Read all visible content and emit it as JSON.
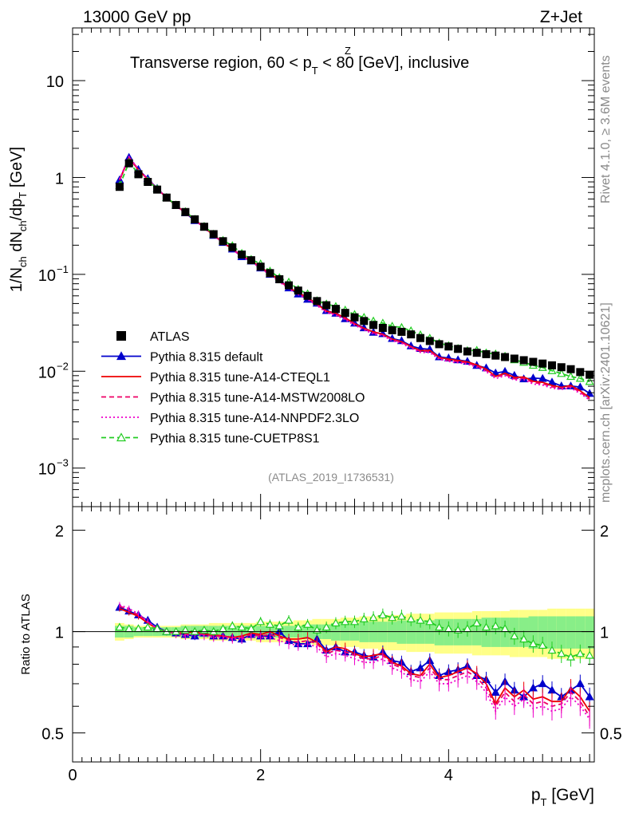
{
  "header": {
    "energy": "13000 GeV pp",
    "process": "Z+Jet"
  },
  "title": {
    "main_pre": "Transverse region, 60 < p",
    "main_sup": "Z",
    "main_sub": "T",
    "main_post": " < 80 [GeV], inclusive"
  },
  "side": {
    "rivet": "Rivet 4.1.0, ≥ 3.6M events",
    "mcplots": "mcplots.cern.ch [arXiv:2401.10621]"
  },
  "analysis_tag": "(ATLAS_2019_I1736531)",
  "axes": {
    "ylabel_main": "1/N_ch dN_ch/dp_T [GeV]",
    "ylabel_ratio": "Ratio to ATLAS",
    "xlabel": "p_T [GeV]",
    "x_ticks": [
      "0",
      "2",
      "4"
    ],
    "y_main_ticks": [
      "10",
      "1",
      "10^-1",
      "10^-2",
      "10^-3"
    ],
    "y_ratio_ticks": [
      "2",
      "1",
      "0.5"
    ]
  },
  "legend": [
    {
      "label": "ATLAS",
      "color": "#000000",
      "style": "square"
    },
    {
      "label": "Pythia 8.315 default",
      "color": "#0000cc",
      "style": "line-triangle"
    },
    {
      "label": "Pythia 8.315 tune-A14-CTEQL1",
      "color": "#ee0000",
      "style": "solid"
    },
    {
      "label": "Pythia 8.315 tune-A14-MSTW2008LO",
      "color": "#ee0066",
      "style": "dashed"
    },
    {
      "label": "Pythia 8.315 tune-A14-NNPDF2.3LO",
      "color": "#ee00cc",
      "style": "dotted"
    },
    {
      "label": "Pythia 8.315 tune-CUETP8S1",
      "color": "#22cc22",
      "style": "dashed-open-triangle"
    }
  ],
  "chart_data": {
    "type": "line",
    "title": "Transverse region, 60 < pT^Z < 80 [GeV], inclusive",
    "xlabel": "pT [GeV]",
    "ylabel": "1/Nch dNch/dpT [GeV]",
    "xlim": [
      0,
      5.55
    ],
    "ylim_main": [
      0.0004,
      35
    ],
    "yscale_main": "log",
    "ylim_ratio": [
      0.41,
      2.35
    ],
    "yscale_ratio": "log",
    "x": [
      0.5,
      0.6,
      0.7,
      0.8,
      0.9,
      1.0,
      1.1,
      1.2,
      1.3,
      1.4,
      1.5,
      1.6,
      1.7,
      1.8,
      1.9,
      2.0,
      2.1,
      2.2,
      2.3,
      2.4,
      2.5,
      2.6,
      2.7,
      2.8,
      2.9,
      3.0,
      3.1,
      3.2,
      3.3,
      3.4,
      3.5,
      3.6,
      3.7,
      3.8,
      3.9,
      4.0,
      4.1,
      4.2,
      4.3,
      4.4,
      4.5,
      4.6,
      4.7,
      4.8,
      4.9,
      5.0,
      5.1,
      5.2,
      5.3,
      5.4,
      5.5
    ],
    "atlas": [
      0.8,
      1.4,
      1.08,
      0.9,
      0.75,
      0.62,
      0.52,
      0.44,
      0.37,
      0.31,
      0.26,
      0.22,
      0.19,
      0.16,
      0.14,
      0.12,
      0.103,
      0.089,
      0.077,
      0.068,
      0.06,
      0.053,
      0.048,
      0.044,
      0.04,
      0.036,
      0.033,
      0.03,
      0.028,
      0.0265,
      0.0255,
      0.024,
      0.022,
      0.0205,
      0.019,
      0.018,
      0.017,
      0.016,
      0.0155,
      0.015,
      0.0145,
      0.014,
      0.0135,
      0.013,
      0.0125,
      0.012,
      0.0115,
      0.011,
      0.0105,
      0.0098,
      0.0092
    ],
    "ratio_band_inner": [
      0.96,
      0.96,
      0.97,
      0.97,
      0.97,
      0.97,
      0.97,
      0.96,
      0.96,
      0.96,
      0.96,
      0.96,
      0.96,
      0.96,
      0.96,
      0.96,
      0.96,
      0.96,
      0.96,
      0.96,
      0.95,
      0.95,
      0.95,
      0.94,
      0.94,
      0.94,
      0.93,
      0.93,
      0.93,
      0.93,
      0.92,
      0.92,
      0.92,
      0.92,
      0.91,
      0.91,
      0.91,
      0.91,
      0.91,
      0.9,
      0.9,
      0.9,
      0.9,
      0.9,
      0.89,
      0.89,
      0.89,
      0.89,
      0.89,
      0.89,
      0.89
    ],
    "ratio_band_inner_hi": [
      1.04,
      1.04,
      1.03,
      1.03,
      1.03,
      1.03,
      1.03,
      1.04,
      1.04,
      1.04,
      1.04,
      1.04,
      1.04,
      1.04,
      1.04,
      1.04,
      1.04,
      1.04,
      1.04,
      1.04,
      1.05,
      1.05,
      1.05,
      1.06,
      1.06,
      1.06,
      1.07,
      1.07,
      1.07,
      1.07,
      1.08,
      1.08,
      1.08,
      1.08,
      1.09,
      1.09,
      1.09,
      1.09,
      1.09,
      1.1,
      1.1,
      1.1,
      1.1,
      1.1,
      1.11,
      1.11,
      1.11,
      1.11,
      1.11,
      1.11,
      1.11
    ],
    "ratio_band_outer_lo": [
      0.94,
      0.95,
      0.96,
      0.96,
      0.96,
      0.96,
      0.96,
      0.95,
      0.95,
      0.95,
      0.94,
      0.94,
      0.94,
      0.94,
      0.94,
      0.93,
      0.93,
      0.93,
      0.93,
      0.92,
      0.92,
      0.91,
      0.91,
      0.91,
      0.9,
      0.9,
      0.89,
      0.89,
      0.88,
      0.88,
      0.88,
      0.87,
      0.87,
      0.87,
      0.86,
      0.86,
      0.86,
      0.86,
      0.85,
      0.85,
      0.85,
      0.85,
      0.84,
      0.84,
      0.84,
      0.84,
      0.83,
      0.83,
      0.83,
      0.83,
      0.83
    ],
    "ratio_band_outer_hi": [
      1.06,
      1.05,
      1.04,
      1.04,
      1.04,
      1.04,
      1.04,
      1.05,
      1.05,
      1.05,
      1.06,
      1.06,
      1.06,
      1.06,
      1.06,
      1.07,
      1.07,
      1.07,
      1.07,
      1.08,
      1.08,
      1.09,
      1.09,
      1.09,
      1.1,
      1.1,
      1.11,
      1.11,
      1.12,
      1.12,
      1.12,
      1.13,
      1.13,
      1.13,
      1.14,
      1.14,
      1.14,
      1.14,
      1.15,
      1.15,
      1.15,
      1.15,
      1.16,
      1.16,
      1.16,
      1.16,
      1.17,
      1.17,
      1.17,
      1.17,
      1.17
    ],
    "series": [
      {
        "name": "Pythia 8.315 default",
        "color": "#0000cc",
        "style": "line-triangle",
        "ratio": [
          1.18,
          1.15,
          1.12,
          1.08,
          1.03,
          1.0,
          0.99,
          0.98,
          0.97,
          0.99,
          0.97,
          0.97,
          0.96,
          0.95,
          0.98,
          0.97,
          0.97,
          1.0,
          0.94,
          0.92,
          0.92,
          0.95,
          0.88,
          0.9,
          0.87,
          0.87,
          0.85,
          0.84,
          0.87,
          0.82,
          0.81,
          0.76,
          0.78,
          0.82,
          0.74,
          0.76,
          0.77,
          0.79,
          0.74,
          0.72,
          0.66,
          0.71,
          0.67,
          0.64,
          0.68,
          0.7,
          0.67,
          0.64,
          0.67,
          0.7,
          0.64
        ]
      },
      {
        "name": "Pythia 8.315 tune-A14-CTEQL1",
        "color": "#ee0000",
        "style": "solid",
        "ratio": [
          1.17,
          1.14,
          1.11,
          1.06,
          1.02,
          1.0,
          0.99,
          0.99,
          1.0,
          0.98,
          0.98,
          0.97,
          0.96,
          0.97,
          0.99,
          0.98,
          1.0,
          0.97,
          0.95,
          0.95,
          0.96,
          0.93,
          0.87,
          0.9,
          0.89,
          0.86,
          0.84,
          0.85,
          0.86,
          0.81,
          0.79,
          0.75,
          0.74,
          0.8,
          0.73,
          0.74,
          0.76,
          0.78,
          0.75,
          0.7,
          0.61,
          0.68,
          0.64,
          0.67,
          0.63,
          0.64,
          0.62,
          0.62,
          0.68,
          0.64,
          0.58
        ]
      },
      {
        "name": "Pythia 8.315 tune-A14-MSTW2008LO",
        "color": "#ee0066",
        "style": "dashed",
        "ratio": [
          1.19,
          1.16,
          1.12,
          1.07,
          1.02,
          1.0,
          0.99,
          0.98,
          0.99,
          0.98,
          0.97,
          0.97,
          0.96,
          0.96,
          0.98,
          0.97,
          0.98,
          0.96,
          0.94,
          0.93,
          0.94,
          0.92,
          0.86,
          0.88,
          0.87,
          0.85,
          0.83,
          0.83,
          0.85,
          0.8,
          0.78,
          0.74,
          0.73,
          0.78,
          0.72,
          0.72,
          0.74,
          0.76,
          0.73,
          0.68,
          0.6,
          0.66,
          0.62,
          0.65,
          0.61,
          0.62,
          0.6,
          0.61,
          0.66,
          0.62,
          0.56
        ]
      },
      {
        "name": "Pythia 8.315 tune-A14-NNPDF2.3LO",
        "color": "#ee00cc",
        "style": "dotted",
        "ratio": [
          1.2,
          1.17,
          1.13,
          1.07,
          1.02,
          1.0,
          0.98,
          0.97,
          0.98,
          0.97,
          0.96,
          0.96,
          0.95,
          0.95,
          0.97,
          0.96,
          0.96,
          0.94,
          0.92,
          0.91,
          0.92,
          0.9,
          0.84,
          0.86,
          0.85,
          0.83,
          0.81,
          0.81,
          0.83,
          0.78,
          0.76,
          0.72,
          0.71,
          0.76,
          0.7,
          0.7,
          0.72,
          0.74,
          0.71,
          0.66,
          0.58,
          0.64,
          0.6,
          0.63,
          0.59,
          0.6,
          0.58,
          0.59,
          0.64,
          0.6,
          0.55
        ]
      },
      {
        "name": "Pythia 8.315 tune-CUETP8S1",
        "color": "#22cc22",
        "style": "dashed-open-triangle",
        "ratio": [
          1.03,
          1.02,
          1.02,
          1.03,
          1.02,
          1.0,
          1.0,
          1.01,
          1.0,
          1.01,
          1.0,
          1.02,
          1.04,
          1.03,
          1.02,
          1.07,
          1.05,
          1.04,
          1.08,
          1.03,
          1.05,
          1.01,
          1.03,
          1.06,
          1.07,
          1.07,
          1.09,
          1.1,
          1.12,
          1.1,
          1.11,
          1.09,
          1.08,
          1.07,
          1.03,
          1.02,
          1.01,
          1.02,
          1.06,
          1.03,
          1.04,
          1.02,
          0.97,
          0.95,
          0.92,
          0.91,
          0.88,
          0.86,
          0.84,
          0.86,
          0.85
        ]
      }
    ]
  }
}
